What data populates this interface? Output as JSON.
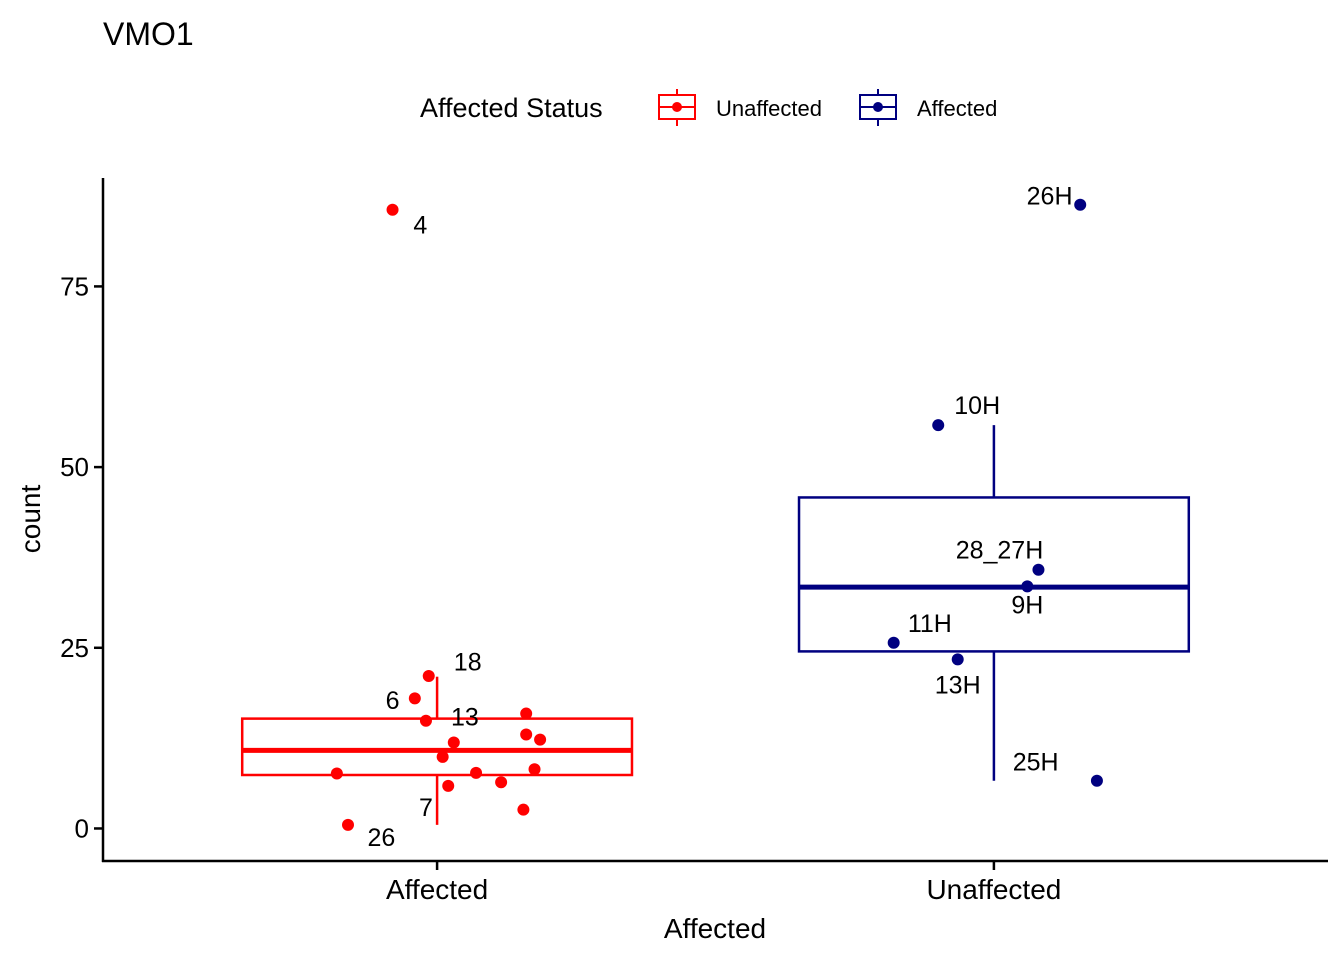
{
  "chart_data": {
    "type": "boxplot",
    "title": "VMO1",
    "xlabel": "Affected",
    "ylabel": "count",
    "ylim": [
      -4.5,
      90
    ],
    "yticks": [
      0,
      25,
      50,
      75
    ],
    "categories": [
      "Affected",
      "Unaffected"
    ],
    "legend": {
      "title": "Affected Status",
      "position": "top",
      "entries": [
        {
          "label": "Unaffected",
          "color": "#ff0000"
        },
        {
          "label": "Affected",
          "color": "#000080"
        }
      ]
    },
    "boxes": [
      {
        "category": "Affected",
        "color": "#ff0000",
        "q1": 7.4,
        "median": 10.8,
        "q3": 15.2,
        "whisker_low": 0.5,
        "whisker_high": 21
      },
      {
        "category": "Unaffected",
        "color": "#000080",
        "q1": 24.5,
        "median": 33.4,
        "q3": 45.8,
        "whisker_low": 6.6,
        "whisker_high": 55.8
      }
    ],
    "points": [
      {
        "category": "Affected",
        "jitter": -0.08,
        "y": 85.6,
        "label": "4",
        "lx": 0.05,
        "ly": -2
      },
      {
        "category": "Affected",
        "jitter": -0.015,
        "y": 21.1,
        "label": "18",
        "lx": 0.07,
        "ly": 2
      },
      {
        "category": "Affected",
        "jitter": -0.04,
        "y": 18.0,
        "label": "6",
        "lx": -0.04,
        "ly": -0.2
      },
      {
        "category": "Affected",
        "jitter": -0.02,
        "y": 14.9,
        "label": "13",
        "lx": 0.07,
        "ly": 0.6
      },
      {
        "category": "Affected",
        "jitter": 0.16,
        "y": 15.9
      },
      {
        "category": "Affected",
        "jitter": 0.16,
        "y": 13.0
      },
      {
        "category": "Affected",
        "jitter": 0.185,
        "y": 12.3
      },
      {
        "category": "Affected",
        "jitter": 0.03,
        "y": 11.9
      },
      {
        "category": "Affected",
        "jitter": 0.01,
        "y": 9.9
      },
      {
        "category": "Affected",
        "jitter": -0.18,
        "y": 7.6
      },
      {
        "category": "Affected",
        "jitter": 0.07,
        "y": 7.7
      },
      {
        "category": "Affected",
        "jitter": 0.175,
        "y": 8.2
      },
      {
        "category": "Affected",
        "jitter": 0.115,
        "y": 6.4
      },
      {
        "category": "Affected",
        "jitter": 0.02,
        "y": 5.9,
        "label": "7",
        "lx": -0.04,
        "ly": -2.9
      },
      {
        "category": "Affected",
        "jitter": 0.155,
        "y": 2.6
      },
      {
        "category": "Affected",
        "jitter": -0.16,
        "y": 0.5,
        "label": "26",
        "lx": 0.06,
        "ly": -1.7
      },
      {
        "category": "Unaffected",
        "jitter": 0.155,
        "y": 86.3,
        "label": "26H",
        "lx": -0.055,
        "ly": 1.3
      },
      {
        "category": "Unaffected",
        "jitter": -0.1,
        "y": 55.8,
        "label": "10H",
        "lx": 0.07,
        "ly": 2.8
      },
      {
        "category": "Unaffected",
        "jitter": 0.08,
        "y": 35.8,
        "label": "28_27H",
        "lx": -0.07,
        "ly": 2.8
      },
      {
        "category": "Unaffected",
        "jitter": 0.06,
        "y": 33.5,
        "label": "9H",
        "lx": 0.0,
        "ly": -2.5
      },
      {
        "category": "Unaffected",
        "jitter": -0.18,
        "y": 25.7,
        "label": "11H",
        "lx": 0.065,
        "ly": 2.7
      },
      {
        "category": "Unaffected",
        "jitter": -0.065,
        "y": 23.4,
        "label": "13H",
        "lx": 0.0,
        "ly": -3.5
      },
      {
        "category": "Unaffected",
        "jitter": 0.185,
        "y": 6.6,
        "label": "25H",
        "lx": -0.11,
        "ly": 2.7
      }
    ]
  }
}
